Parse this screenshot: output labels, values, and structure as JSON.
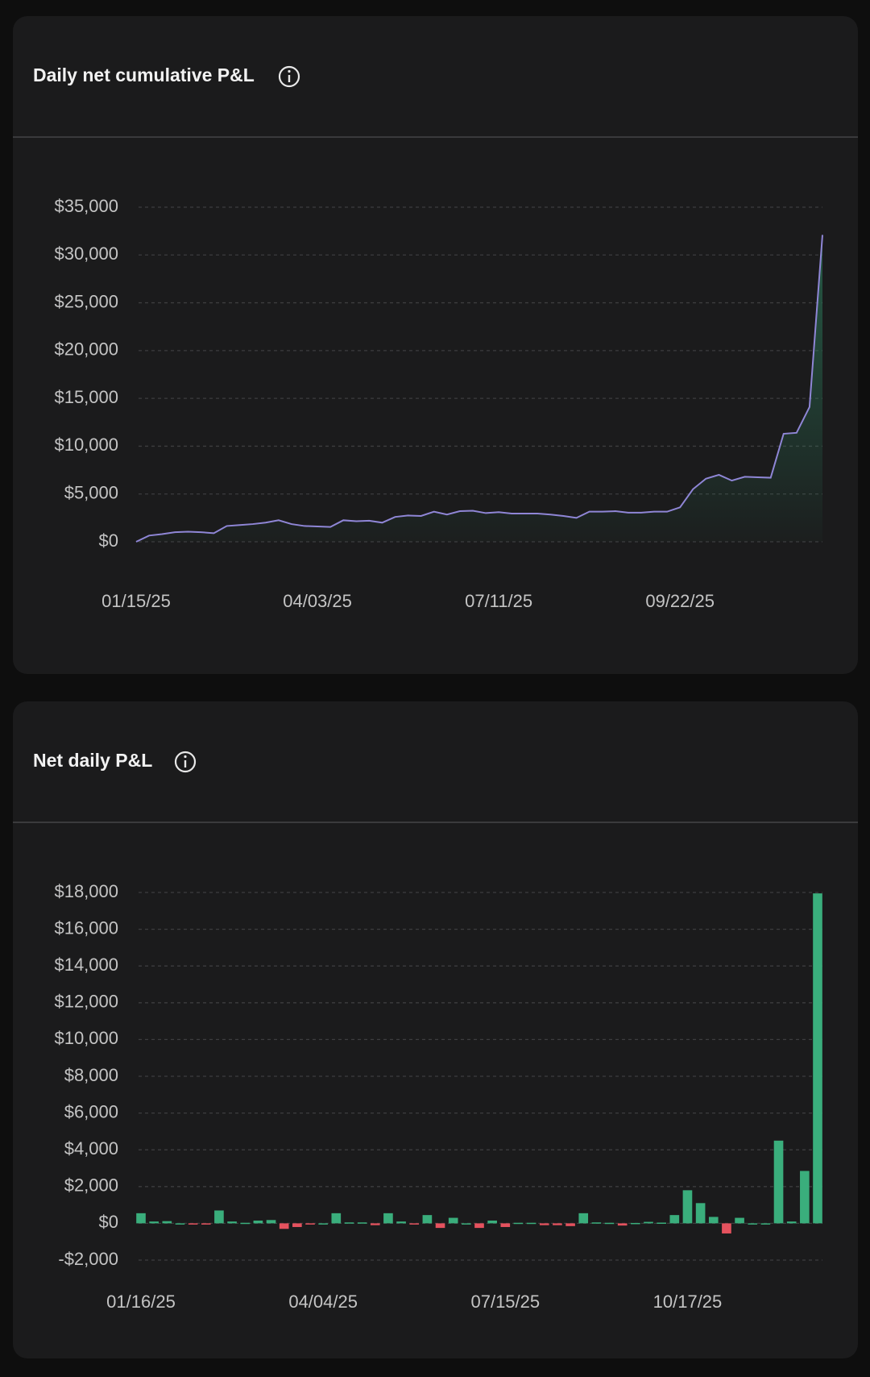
{
  "chart_data": [
    {
      "type": "line",
      "title": "Daily net cumulative P&L",
      "categories": [
        "01/15/25",
        null,
        null,
        null,
        null,
        null,
        null,
        null,
        null,
        null,
        null,
        null,
        null,
        null,
        "04/03/25",
        null,
        null,
        null,
        null,
        null,
        null,
        null,
        null,
        null,
        null,
        null,
        null,
        null,
        "07/11/25",
        null,
        null,
        null,
        null,
        null,
        null,
        null,
        null,
        null,
        null,
        null,
        null,
        null,
        "09/22/25",
        null,
        null,
        null,
        null,
        null,
        null,
        null,
        null,
        null,
        null,
        null
      ],
      "values": [
        0,
        650,
        800,
        1000,
        1050,
        1000,
        900,
        1650,
        1750,
        1850,
        2000,
        2250,
        1850,
        1650,
        1600,
        1550,
        2250,
        2150,
        2200,
        2000,
        2600,
        2750,
        2700,
        3150,
        2850,
        3200,
        3250,
        3000,
        3100,
        2950,
        2950,
        2950,
        2850,
        2700,
        2500,
        3150,
        3150,
        3200,
        3050,
        3050,
        3150,
        3150,
        3600,
        5500,
        6600,
        7000,
        6400,
        6800,
        6750,
        6700,
        11300,
        11400,
        14100,
        32100
      ],
      "color": "#8f86d6",
      "fill_color": "#2f8f68",
      "ylim": [
        0,
        35000
      ],
      "yticks": [
        {
          "value": 0,
          "label": "$0"
        },
        {
          "value": 5000,
          "label": "$5,000"
        },
        {
          "value": 10000,
          "label": "$10,000"
        },
        {
          "value": 15000,
          "label": "$15,000"
        },
        {
          "value": 20000,
          "label": "$20,000"
        },
        {
          "value": 25000,
          "label": "$25,000"
        },
        {
          "value": 30000,
          "label": "$30,000"
        },
        {
          "value": 35000,
          "label": "$35,000"
        }
      ],
      "grid": true
    },
    {
      "type": "bar",
      "title": "Net daily P&L",
      "categories": [
        "01/16/25",
        null,
        null,
        null,
        null,
        null,
        null,
        null,
        null,
        null,
        null,
        null,
        null,
        null,
        "04/04/25",
        null,
        null,
        null,
        null,
        null,
        null,
        null,
        null,
        null,
        null,
        null,
        null,
        null,
        "07/15/25",
        null,
        null,
        null,
        null,
        null,
        null,
        null,
        null,
        null,
        null,
        null,
        null,
        null,
        "10/17/25",
        null,
        null,
        null,
        null,
        null,
        null,
        null,
        null,
        null,
        null
      ],
      "values": [
        550,
        100,
        120,
        0,
        -30,
        -20,
        700,
        100,
        30,
        150,
        180,
        -300,
        -200,
        -50,
        0,
        550,
        50,
        50,
        -100,
        550,
        100,
        -50,
        450,
        -250,
        300,
        0,
        -250,
        150,
        -200,
        30,
        30,
        -100,
        -100,
        -150,
        550,
        50,
        30,
        -120,
        20,
        80,
        40,
        450,
        1800,
        1100,
        350,
        -550,
        300,
        0,
        0,
        4500,
        100,
        2850,
        17950
      ],
      "color": "#3aae7c",
      "negative_color": "#e5525e",
      "ylim": [
        -2000,
        18000
      ],
      "yticks": [
        {
          "value": -2000,
          "label": "-$2,000"
        },
        {
          "value": 0,
          "label": "$0"
        },
        {
          "value": 2000,
          "label": "$2,000"
        },
        {
          "value": 4000,
          "label": "$4,000"
        },
        {
          "value": 6000,
          "label": "$6,000"
        },
        {
          "value": 8000,
          "label": "$8,000"
        },
        {
          "value": 10000,
          "label": "$10,000"
        },
        {
          "value": 12000,
          "label": "$12,000"
        },
        {
          "value": 14000,
          "label": "$14,000"
        },
        {
          "value": 16000,
          "label": "$16,000"
        },
        {
          "value": 18000,
          "label": "$18,000"
        }
      ],
      "grid": true
    }
  ]
}
